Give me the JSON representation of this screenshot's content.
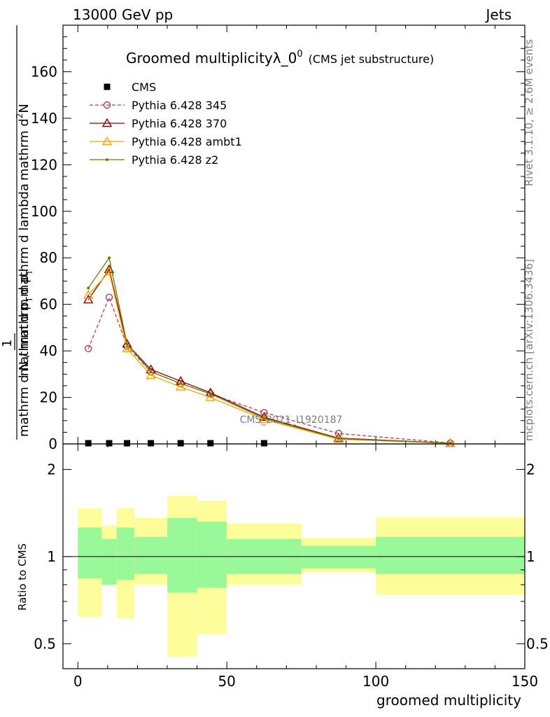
{
  "header": {
    "left": "13000 GeV pp",
    "right": "Jets"
  },
  "title": {
    "main": "Groomed multiplicityλ_0",
    "sup": "0",
    "sub": "(CMS jet substructure)"
  },
  "side_labels": {
    "rivet": "Rivet 3.1.10, ≥ 2.6M events",
    "mcplots": "mcplots.cern.ch [arXiv:1306.3436]"
  },
  "watermark": "CMS_2021_I1920187",
  "y_label_main": {
    "line1": "mathrm d",
    "line1_sup": "2",
    "line1_end": "N",
    "line2": "mathrm d p",
    "line2_sub": "T",
    "line2_end": "mathrm d lambda",
    "one": "1",
    "den": "mathrm d N / mathrm d p",
    "den_sub": "T"
  },
  "y_label_ratio": "Ratio to CMS",
  "x_label": "groomed multiplicity",
  "chart_data": [
    {
      "type": "line",
      "panel": "main",
      "xlim": [
        -5,
        150
      ],
      "ylim": [
        0,
        180
      ],
      "yticks": [
        0,
        20,
        40,
        60,
        80,
        100,
        120,
        140,
        160
      ],
      "legend_position": "top-left",
      "series": [
        {
          "name": "CMS",
          "color": "#000000",
          "marker": "square",
          "x": [
            3.5,
            10.5,
            16.5,
            24.5,
            34.5,
            44.5,
            62.5
          ],
          "y": [
            0.3,
            0.3,
            0.3,
            0.3,
            0.3,
            0.3,
            0.3
          ]
        },
        {
          "name": "Pythia 6.428 345",
          "color": "#b13d5c",
          "marker": "circle-open",
          "dashed": true,
          "x": [
            3.5,
            10.5,
            16.5,
            24.5,
            34.5,
            44.5,
            62.5,
            87.5,
            125
          ],
          "y": [
            41,
            63,
            42,
            31,
            26,
            21.5,
            13.5,
            4.5,
            0.4
          ]
        },
        {
          "name": "Pythia 6.428 370",
          "color": "#8b0000",
          "marker": "triangle-open",
          "dashed": false,
          "x": [
            3.5,
            10.5,
            16.5,
            24.5,
            34.5,
            44.5,
            62.5,
            87.5,
            125
          ],
          "y": [
            62,
            75,
            43,
            32,
            27,
            22,
            11.5,
            2.5,
            0.3
          ]
        },
        {
          "name": "Pythia 6.428 ambt1",
          "color": "#f4a300",
          "marker": "triangle-open",
          "dashed": false,
          "x": [
            3.5,
            10.5,
            16.5,
            24.5,
            34.5,
            44.5,
            62.5,
            87.5,
            125
          ],
          "y": [
            64,
            74,
            41,
            29.5,
            24.5,
            20,
            10.5,
            2,
            0.3
          ]
        },
        {
          "name": "Pythia 6.428 z2",
          "color": "#6b7d00",
          "marker": "dot",
          "dashed": false,
          "x": [
            3.5,
            10.5,
            16.5,
            24.5,
            34.5,
            44.5,
            62.5,
            87.5,
            125
          ],
          "y": [
            67,
            80,
            43,
            31,
            26,
            21.5,
            11,
            2.3,
            0.3
          ]
        }
      ]
    },
    {
      "type": "area",
      "panel": "ratio",
      "xlim": [
        -5,
        150
      ],
      "ylog": true,
      "ylim": [
        0.41,
        2.45
      ],
      "yticks": [
        0.5,
        1,
        2
      ],
      "xticks": [
        0,
        50,
        100,
        150
      ],
      "reference_line": 1,
      "bins": [
        {
          "x0": 0,
          "x1": 8,
          "inner": [
            0.84,
            1.26
          ],
          "outer": [
            0.62,
            1.47
          ]
        },
        {
          "x0": 8,
          "x1": 13,
          "inner": [
            0.8,
            1.15
          ],
          "outer": [
            0.8,
            1.28
          ]
        },
        {
          "x0": 13,
          "x1": 19,
          "inner": [
            0.83,
            1.26
          ],
          "outer": [
            0.61,
            1.47
          ]
        },
        {
          "x0": 19,
          "x1": 30,
          "inner": [
            0.87,
            1.17
          ],
          "outer": [
            0.8,
            1.36
          ]
        },
        {
          "x0": 30,
          "x1": 40,
          "inner": [
            0.75,
            1.36
          ],
          "outer": [
            0.45,
            1.62
          ]
        },
        {
          "x0": 40,
          "x1": 50,
          "inner": [
            0.78,
            1.32
          ],
          "outer": [
            0.54,
            1.56
          ]
        },
        {
          "x0": 50,
          "x1": 75,
          "inner": [
            0.87,
            1.15
          ],
          "outer": [
            0.8,
            1.3
          ]
        },
        {
          "x0": 75,
          "x1": 100,
          "inner": [
            0.91,
            1.09
          ],
          "outer": [
            0.88,
            1.16
          ]
        },
        {
          "x0": 100,
          "x1": 150,
          "inner": [
            0.87,
            1.17
          ],
          "outer": [
            0.74,
            1.37
          ]
        }
      ],
      "band_colors": {
        "inner": "#99f999",
        "outer": "#fdfd99"
      }
    }
  ]
}
